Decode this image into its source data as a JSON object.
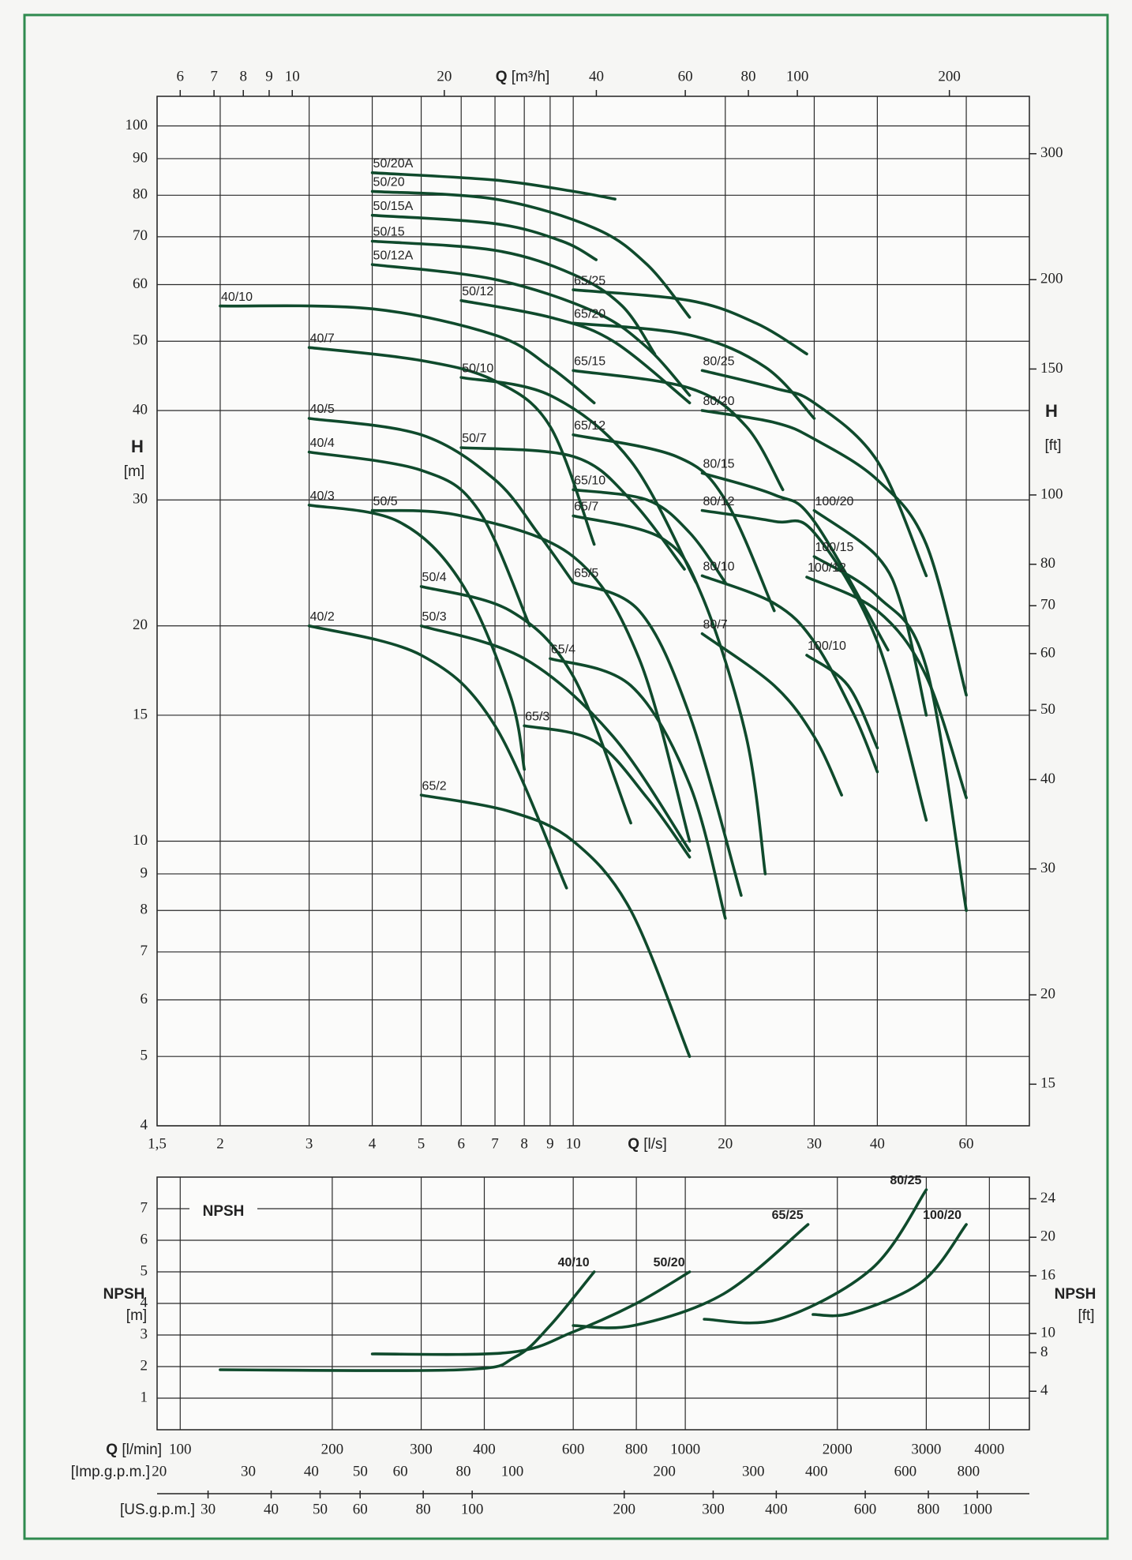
{
  "chart_data": [
    {
      "type": "line",
      "xlabel": "Q",
      "xunit": "[l/s]",
      "x2label": "Q",
      "x2unit": "[m³/h]",
      "ylabel": "H",
      "yunit": "[m]",
      "y2label": "H",
      "y2unit": "[ft]",
      "xscale": "log",
      "yscale": "log",
      "grid": true,
      "color": "#0f4a2c",
      "xlim": [
        1.5,
        80
      ],
      "xticks": [
        {
          "value": 1.5,
          "label": "1,5"
        },
        2,
        3,
        4,
        5,
        6,
        7,
        8,
        9,
        10,
        20,
        30,
        40,
        60
      ],
      "x2lim": [
        5.4,
        288
      ],
      "x2ticks": [
        6,
        7,
        8,
        9,
        10,
        20,
        40,
        60,
        80,
        100,
        200
      ],
      "ylim": [
        4,
        110
      ],
      "yticks": [
        4,
        5,
        6,
        7,
        8,
        9,
        10,
        15,
        20,
        30,
        40,
        50,
        60,
        70,
        80,
        90,
        100
      ],
      "y2lim": [
        13.12,
        360.9
      ],
      "y2ticks": [
        15,
        20,
        30,
        40,
        50,
        60,
        70,
        80,
        100,
        150,
        200,
        300
      ],
      "series": [
        {
          "name": "50/20A",
          "x": [
            4,
            7,
            10,
            12.1
          ],
          "values": [
            86,
            84,
            81,
            79
          ]
        },
        {
          "name": "50/20",
          "x": [
            4,
            7,
            11,
            14,
            17
          ],
          "values": [
            81,
            79,
            72,
            64,
            54
          ]
        },
        {
          "name": "50/15A",
          "x": [
            4,
            7,
            9.5,
            11.1
          ],
          "values": [
            75,
            73,
            69,
            65
          ]
        },
        {
          "name": "50/15",
          "x": [
            4,
            7,
            10,
            12.5,
            14.5
          ],
          "values": [
            69,
            67,
            62,
            56,
            48
          ]
        },
        {
          "name": "50/12A",
          "x": [
            4,
            7,
            11,
            14,
            17
          ],
          "values": [
            64,
            61,
            55,
            49,
            42
          ]
        },
        {
          "name": "65/25",
          "x": [
            10,
            17,
            23,
            29
          ],
          "values": [
            59,
            57,
            53,
            48
          ]
        },
        {
          "name": "40/10",
          "x": [
            2,
            4,
            7,
            9,
            11
          ],
          "values": [
            56,
            55.5,
            51,
            46,
            41
          ]
        },
        {
          "name": "50/12",
          "x": [
            6,
            9,
            12,
            17
          ],
          "values": [
            57,
            54,
            50,
            41
          ]
        },
        {
          "name": "65/20",
          "x": [
            10,
            17,
            24,
            30
          ],
          "values": [
            53,
            51,
            46,
            39
          ]
        },
        {
          "name": "40/7",
          "x": [
            3,
            5,
            7,
            9,
            11
          ],
          "values": [
            49,
            47,
            44,
            38,
            26
          ]
        },
        {
          "name": "50/10",
          "x": [
            6,
            9,
            13,
            17.5
          ],
          "values": [
            44.5,
            42,
            34,
            23
          ]
        },
        {
          "name": "65/15",
          "x": [
            10,
            17,
            22,
            26
          ],
          "values": [
            45.5,
            43,
            38,
            31
          ]
        },
        {
          "name": "80/25",
          "x": [
            18,
            25,
            30,
            40,
            50
          ],
          "values": [
            45.5,
            43,
            41,
            34,
            23.5
          ]
        },
        {
          "name": "40/5",
          "x": [
            3,
            5,
            7,
            8.5,
            10
          ],
          "values": [
            39,
            37,
            32,
            27,
            23
          ]
        },
        {
          "name": "80/20",
          "x": [
            18,
            25,
            30,
            40,
            50,
            60
          ],
          "values": [
            40,
            38.5,
            36.5,
            32,
            26,
            16
          ]
        },
        {
          "name": "40/4",
          "x": [
            3,
            5,
            6.5,
            8.2
          ],
          "values": [
            35,
            33,
            29,
            20
          ]
        },
        {
          "name": "50/7",
          "x": [
            6,
            10,
            13,
            16.6
          ],
          "values": [
            35.5,
            34.5,
            30,
            24
          ]
        },
        {
          "name": "65/12",
          "x": [
            10,
            16,
            20,
            25
          ],
          "values": [
            37,
            34.5,
            30,
            21
          ]
        },
        {
          "name": "80/15",
          "x": [
            18,
            25,
            30,
            42
          ],
          "values": [
            32.7,
            30.5,
            28,
            18.5
          ]
        },
        {
          "name": "65/10",
          "x": [
            10,
            14,
            17,
            20
          ],
          "values": [
            31,
            30,
            27,
            23
          ]
        },
        {
          "name": "40/3",
          "x": [
            3,
            4.5,
            6,
            7.5,
            8
          ],
          "values": [
            29.5,
            28,
            23,
            16,
            12.6
          ]
        },
        {
          "name": "50/5",
          "x": [
            4,
            6,
            10,
            13.5,
            17
          ],
          "values": [
            29,
            28.5,
            25,
            18,
            10
          ]
        },
        {
          "name": "100/20",
          "x": [
            30,
            40,
            45,
            50
          ],
          "values": [
            29,
            25,
            21,
            15
          ]
        },
        {
          "name": "65/7",
          "x": [
            10,
            15,
            18,
            22,
            24
          ],
          "values": [
            28.5,
            26.5,
            22,
            14,
            9
          ]
        },
        {
          "name": "80/12",
          "x": [
            18,
            25,
            30,
            40,
            50
          ],
          "values": [
            29,
            28,
            27,
            19,
            10.7
          ]
        },
        {
          "name": "50/4",
          "x": [
            5,
            7.5,
            10,
            13
          ],
          "values": [
            22.7,
            21,
            17,
            10.6
          ]
        },
        {
          "name": "65/5",
          "x": [
            10,
            13.5,
            17,
            21.5
          ],
          "values": [
            23,
            21,
            15,
            8.4
          ]
        },
        {
          "name": "80/10",
          "x": [
            18,
            25,
            30,
            36,
            40
          ],
          "values": [
            23.5,
            21.5,
            19,
            15,
            12.5
          ]
        },
        {
          "name": "100/12",
          "x": [
            29,
            40,
            50,
            60
          ],
          "values": [
            23.4,
            21,
            17,
            11.5
          ]
        },
        {
          "name": "40/2",
          "x": [
            3,
            5,
            7,
            9.7
          ],
          "values": [
            20,
            18.2,
            14.5,
            8.6
          ]
        },
        {
          "name": "50/3",
          "x": [
            5,
            8,
            12,
            17
          ],
          "values": [
            20,
            18,
            14,
            9.7
          ]
        },
        {
          "name": "65/4",
          "x": [
            9,
            13,
            17,
            20
          ],
          "values": [
            18,
            16.5,
            12,
            7.8
          ]
        },
        {
          "name": "80/7",
          "x": [
            18,
            25,
            30,
            34
          ],
          "values": [
            19.5,
            16.5,
            14,
            11.6
          ]
        },
        {
          "name": "100/10",
          "x": [
            29,
            35,
            40
          ],
          "values": [
            18.2,
            16.5,
            13.5
          ]
        },
        {
          "name": "100/15",
          "x": [
            30,
            40,
            50,
            60
          ],
          "values": [
            25,
            22,
            17.5,
            8
          ]
        },
        {
          "name": "65/3",
          "x": [
            8,
            11,
            14,
            17
          ],
          "values": [
            14.5,
            13.8,
            11.5,
            9.5
          ]
        },
        {
          "name": "65/2",
          "x": [
            5,
            7.5,
            10,
            13,
            17
          ],
          "values": [
            11.6,
            11,
            10,
            8,
            5
          ]
        }
      ]
    },
    {
      "type": "line",
      "title": "NPSH",
      "xlabel": "Q",
      "xunit": "[l/min]",
      "ylabel": "NPSH",
      "yunit": "[m]",
      "y2label": "NPSH",
      "y2unit": "[ft]",
      "xscale": "log",
      "yscale": "linear",
      "grid": true,
      "color": "#0f4a2c",
      "xlim": [
        90,
        4800
      ],
      "xticks": [
        100,
        200,
        300,
        400,
        600,
        800,
        1000,
        2000,
        3000,
        4000
      ],
      "ylim": [
        0,
        8
      ],
      "yticks": [
        1,
        2,
        3,
        4,
        5,
        6,
        7
      ],
      "y2lim": [
        0,
        26.25
      ],
      "y2ticks": [
        4,
        8,
        10,
        16,
        20,
        24
      ],
      "extra_axes": [
        {
          "label": "[Imp.g.p.m.]",
          "lim": [
            19.8,
            1056
          ],
          "ticks": [
            20,
            30,
            40,
            50,
            60,
            80,
            100,
            200,
            300,
            400,
            600,
            800
          ]
        },
        {
          "label": "[US.g.p.m.]",
          "lim": [
            23.78,
            1268
          ],
          "ticks": [
            30,
            40,
            50,
            60,
            80,
            100,
            200,
            300,
            400,
            600,
            800,
            1000
          ]
        }
      ],
      "series": [
        {
          "name": "40/10",
          "x": [
            120,
            360,
            460,
            540,
            660
          ],
          "values": [
            1.9,
            1.9,
            2.3,
            3.3,
            5
          ]
        },
        {
          "name": "50/20",
          "x": [
            240,
            450,
            600,
            800,
            1020
          ],
          "values": [
            2.4,
            2.45,
            3.1,
            4,
            5
          ]
        },
        {
          "name": "65/25",
          "x": [
            600,
            790,
            1190,
            1750
          ],
          "values": [
            3.3,
            3.3,
            4.3,
            6.5
          ]
        },
        {
          "name": "80/25",
          "x": [
            1090,
            1530,
            2340,
            3000
          ],
          "values": [
            3.5,
            3.5,
            5.1,
            7.6
          ]
        },
        {
          "name": "100/20",
          "x": [
            1790,
            2140,
            2950,
            3600
          ],
          "values": [
            3.65,
            3.7,
            4.7,
            6.5
          ]
        }
      ]
    }
  ]
}
